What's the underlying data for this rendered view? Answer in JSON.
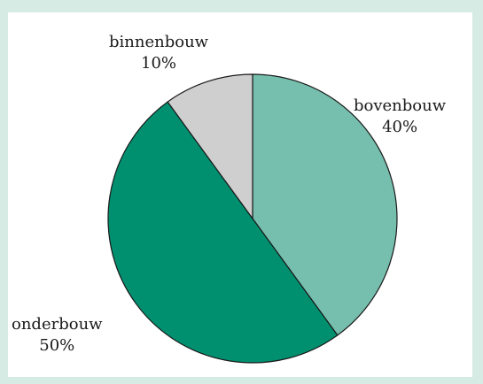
{
  "chart_data": {
    "type": "pie",
    "title": "",
    "slices": [
      {
        "label": "bovenbouw",
        "value": 40,
        "value_label": "40%",
        "color": "#76bfae"
      },
      {
        "label": "onderbouw",
        "value": 50,
        "value_label": "50%",
        "color": "#009070"
      },
      {
        "label": "binnenbouw",
        "value": 10,
        "value_label": "10%",
        "color": "#cfcfcf"
      }
    ],
    "start_angle_deg": 0,
    "direction": "clockwise",
    "legend": "none",
    "outline_color": "#1a1a1a",
    "background": "#d6ebe3"
  }
}
